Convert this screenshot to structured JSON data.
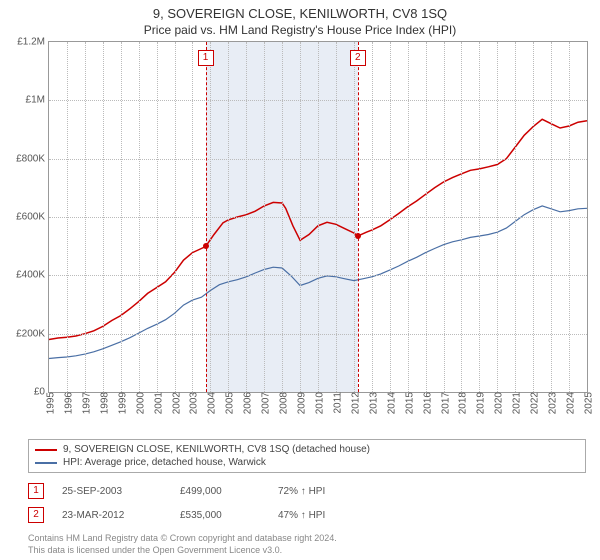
{
  "title": "9, SOVEREIGN CLOSE, KENILWORTH, CV8 1SQ",
  "subtitle": "Price paid vs. HM Land Registry's House Price Index (HPI)",
  "chart": {
    "type": "line",
    "background_color": "#ffffff",
    "grid_color": "#bbbbbb",
    "border_color": "#999999",
    "ylim": [
      0,
      1200000
    ],
    "ytick_step": 200000,
    "yticks": [
      "£0",
      "£200K",
      "£400K",
      "£600K",
      "£800K",
      "£1M",
      "£1.2M"
    ],
    "xlim": [
      1995,
      2025
    ],
    "xticks": [
      1995,
      1996,
      1997,
      1998,
      1999,
      2000,
      2001,
      2002,
      2003,
      2004,
      2005,
      2006,
      2007,
      2008,
      2009,
      2010,
      2011,
      2012,
      2013,
      2014,
      2015,
      2016,
      2017,
      2018,
      2019,
      2020,
      2021,
      2022,
      2023,
      2024,
      2025
    ],
    "label_fontsize": 10,
    "shaded_ranges": [
      {
        "x0": 2003.73,
        "x1": 2012.22,
        "color": "#e8edf5"
      }
    ],
    "series": [
      {
        "key": "price_paid",
        "label": "9, SOVEREIGN CLOSE, KENILWORTH, CV8 1SQ (detached house)",
        "color": "#cc0000",
        "width": 1.5,
        "points": [
          [
            1995.0,
            180000
          ],
          [
            1995.5,
            185000
          ],
          [
            1996.0,
            188000
          ],
          [
            1996.5,
            192000
          ],
          [
            1997.0,
            200000
          ],
          [
            1997.5,
            210000
          ],
          [
            1998.0,
            225000
          ],
          [
            1998.5,
            245000
          ],
          [
            1999.0,
            262000
          ],
          [
            1999.5,
            285000
          ],
          [
            2000.0,
            310000
          ],
          [
            2000.5,
            338000
          ],
          [
            2001.0,
            358000
          ],
          [
            2001.5,
            378000
          ],
          [
            2002.0,
            410000
          ],
          [
            2002.5,
            452000
          ],
          [
            2003.0,
            478000
          ],
          [
            2003.5,
            492000
          ],
          [
            2003.73,
            499000
          ],
          [
            2004.2,
            540000
          ],
          [
            2004.7,
            580000
          ],
          [
            2005.0,
            590000
          ],
          [
            2005.5,
            600000
          ],
          [
            2006.0,
            608000
          ],
          [
            2006.5,
            620000
          ],
          [
            2007.0,
            638000
          ],
          [
            2007.5,
            650000
          ],
          [
            2008.0,
            648000
          ],
          [
            2008.2,
            630000
          ],
          [
            2008.6,
            570000
          ],
          [
            2009.0,
            520000
          ],
          [
            2009.5,
            540000
          ],
          [
            2010.0,
            570000
          ],
          [
            2010.5,
            582000
          ],
          [
            2011.0,
            575000
          ],
          [
            2011.5,
            560000
          ],
          [
            2012.0,
            545000
          ],
          [
            2012.22,
            535000
          ],
          [
            2012.7,
            548000
          ],
          [
            2013.0,
            555000
          ],
          [
            2013.5,
            570000
          ],
          [
            2014.0,
            590000
          ],
          [
            2014.5,
            612000
          ],
          [
            2015.0,
            635000
          ],
          [
            2015.5,
            655000
          ],
          [
            2016.0,
            678000
          ],
          [
            2016.5,
            700000
          ],
          [
            2017.0,
            720000
          ],
          [
            2017.5,
            735000
          ],
          [
            2018.0,
            748000
          ],
          [
            2018.5,
            760000
          ],
          [
            2019.0,
            765000
          ],
          [
            2019.5,
            772000
          ],
          [
            2020.0,
            780000
          ],
          [
            2020.5,
            800000
          ],
          [
            2021.0,
            840000
          ],
          [
            2021.5,
            880000
          ],
          [
            2022.0,
            910000
          ],
          [
            2022.5,
            935000
          ],
          [
            2023.0,
            920000
          ],
          [
            2023.5,
            905000
          ],
          [
            2024.0,
            912000
          ],
          [
            2024.5,
            925000
          ],
          [
            2025.0,
            930000
          ]
        ]
      },
      {
        "key": "hpi",
        "label": "HPI: Average price, detached house, Warwick",
        "color": "#4a6fa5",
        "width": 1.2,
        "points": [
          [
            1995.0,
            115000
          ],
          [
            1995.5,
            118000
          ],
          [
            1996.0,
            120000
          ],
          [
            1996.5,
            124000
          ],
          [
            1997.0,
            130000
          ],
          [
            1997.5,
            138000
          ],
          [
            1998.0,
            148000
          ],
          [
            1998.5,
            160000
          ],
          [
            1999.0,
            172000
          ],
          [
            1999.5,
            186000
          ],
          [
            2000.0,
            202000
          ],
          [
            2000.5,
            218000
          ],
          [
            2001.0,
            232000
          ],
          [
            2001.5,
            248000
          ],
          [
            2002.0,
            270000
          ],
          [
            2002.5,
            298000
          ],
          [
            2003.0,
            315000
          ],
          [
            2003.5,
            325000
          ],
          [
            2004.0,
            348000
          ],
          [
            2004.5,
            368000
          ],
          [
            2005.0,
            378000
          ],
          [
            2005.5,
            385000
          ],
          [
            2006.0,
            395000
          ],
          [
            2006.5,
            408000
          ],
          [
            2007.0,
            420000
          ],
          [
            2007.5,
            428000
          ],
          [
            2008.0,
            425000
          ],
          [
            2008.5,
            398000
          ],
          [
            2009.0,
            365000
          ],
          [
            2009.5,
            375000
          ],
          [
            2010.0,
            390000
          ],
          [
            2010.5,
            398000
          ],
          [
            2011.0,
            395000
          ],
          [
            2011.5,
            388000
          ],
          [
            2012.0,
            382000
          ],
          [
            2012.5,
            388000
          ],
          [
            2013.0,
            395000
          ],
          [
            2013.5,
            405000
          ],
          [
            2014.0,
            418000
          ],
          [
            2014.5,
            432000
          ],
          [
            2015.0,
            448000
          ],
          [
            2015.5,
            462000
          ],
          [
            2016.0,
            478000
          ],
          [
            2016.5,
            492000
          ],
          [
            2017.0,
            505000
          ],
          [
            2017.5,
            515000
          ],
          [
            2018.0,
            522000
          ],
          [
            2018.5,
            530000
          ],
          [
            2019.0,
            535000
          ],
          [
            2019.5,
            540000
          ],
          [
            2020.0,
            548000
          ],
          [
            2020.5,
            562000
          ],
          [
            2021.0,
            585000
          ],
          [
            2021.5,
            608000
          ],
          [
            2022.0,
            625000
          ],
          [
            2022.5,
            638000
          ],
          [
            2023.0,
            628000
          ],
          [
            2023.5,
            618000
          ],
          [
            2024.0,
            622000
          ],
          [
            2024.5,
            628000
          ],
          [
            2025.0,
            630000
          ]
        ]
      }
    ],
    "sale_markers": [
      {
        "n": "1",
        "x": 2003.73,
        "y": 499000,
        "color": "#cc0000"
      },
      {
        "n": "2",
        "x": 2012.22,
        "y": 535000,
        "color": "#cc0000"
      }
    ]
  },
  "legend": {
    "rows": [
      {
        "color": "#cc0000",
        "label": "9, SOVEREIGN CLOSE, KENILWORTH, CV8 1SQ (detached house)"
      },
      {
        "color": "#4a6fa5",
        "label": "HPI: Average price, detached house, Warwick"
      }
    ]
  },
  "sales": [
    {
      "n": "1",
      "date": "25-SEP-2003",
      "price": "£499,000",
      "pct": "72% ↑ HPI"
    },
    {
      "n": "2",
      "date": "23-MAR-2012",
      "price": "£535,000",
      "pct": "47% ↑ HPI"
    }
  ],
  "footer": {
    "line1": "Contains HM Land Registry data © Crown copyright and database right 2024.",
    "line2": "This data is licensed under the Open Government Licence v3.0."
  }
}
